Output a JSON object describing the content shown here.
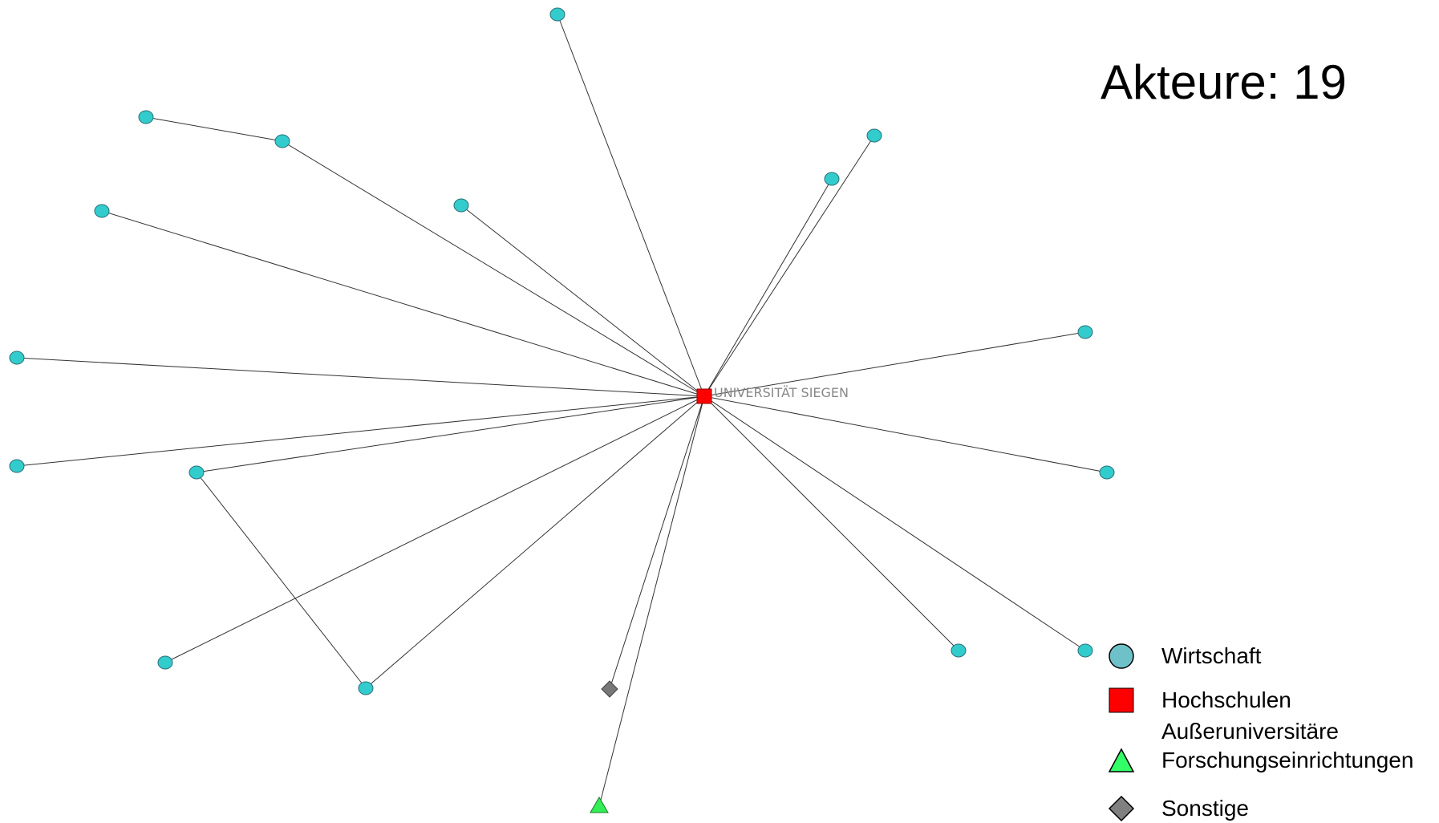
{
  "title": "Akteure: 19",
  "center_label": "UNIVERSITÄT SIEGEN",
  "legend": [
    {
      "shape": "circle",
      "color": "#6fc1c9",
      "label": "Wirtschaft",
      "label2": ""
    },
    {
      "shape": "square",
      "color": "#ff0000",
      "label": "Hochschulen",
      "label2": ""
    },
    {
      "shape": "triangle",
      "color": "#33ff66",
      "label": "Außeruniversitäre",
      "label2": "Forschungseinrichtungen"
    },
    {
      "shape": "diamond",
      "color": "#808080",
      "label": "Sonstige",
      "label2": ""
    }
  ],
  "colors": {
    "wirtschaft": "#33cccc",
    "hochschulen": "#ff0000",
    "forschung": "#33ee55",
    "sonstige": "#777777",
    "edge": "#333333"
  }
}
